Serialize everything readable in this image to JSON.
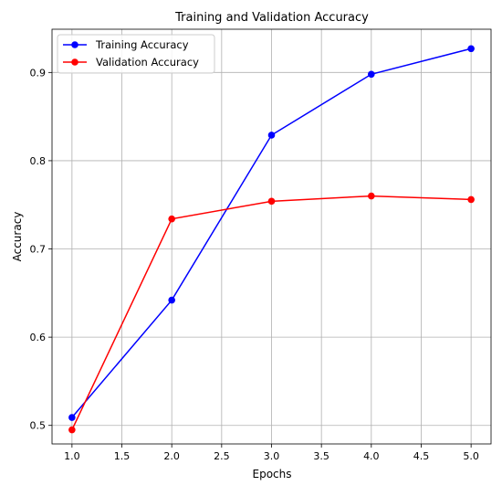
{
  "chart_data": {
    "type": "line",
    "title": "Training and Validation Accuracy",
    "xlabel": "Epochs",
    "ylabel": "Accuracy",
    "x": [
      1,
      2,
      3,
      4,
      5
    ],
    "xlim": [
      0.8,
      5.2
    ],
    "ylim": [
      0.479,
      0.949
    ],
    "xticks": [
      1.0,
      1.5,
      2.0,
      2.5,
      3.0,
      3.5,
      4.0,
      4.5,
      5.0
    ],
    "xtick_labels": [
      "1.0",
      "1.5",
      "2.0",
      "2.5",
      "3.0",
      "3.5",
      "4.0",
      "4.5",
      "5.0"
    ],
    "yticks": [
      0.5,
      0.6,
      0.7,
      0.8,
      0.9
    ],
    "ytick_labels": [
      "0.5",
      "0.6",
      "0.7",
      "0.8",
      "0.9"
    ],
    "grid": true,
    "legend_position": "top-left",
    "series": [
      {
        "name": "Training Accuracy",
        "color": "#0000ff",
        "marker": "circle",
        "values": [
          0.509,
          0.642,
          0.829,
          0.898,
          0.927
        ]
      },
      {
        "name": "Validation Accuracy",
        "color": "#ff0000",
        "marker": "circle",
        "values": [
          0.495,
          0.734,
          0.754,
          0.76,
          0.756
        ]
      }
    ]
  }
}
